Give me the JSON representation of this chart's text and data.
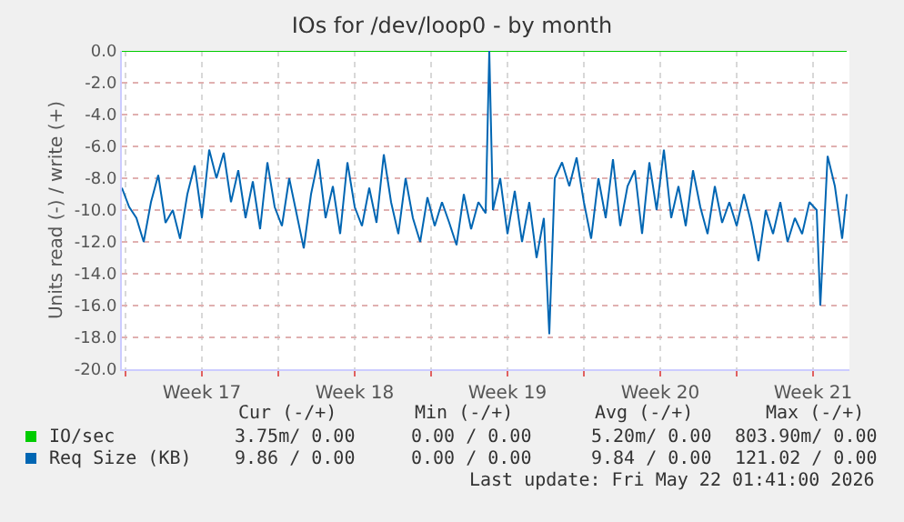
{
  "chart_data": {
    "type": "line",
    "title": "IOs for /dev/loop0 - by month",
    "ylabel": "Units read (-) / write (+)",
    "xlim": [
      "2026-04-18T20:00",
      "2026-05-22T04:00"
    ],
    "ylim": [
      -20,
      0
    ],
    "xticks": [
      {
        "value": "2026-04-19",
        "label": null
      },
      {
        "value": "2026-04-22T12:00",
        "label": "Week 17"
      },
      {
        "value": "2026-04-26",
        "label": null
      },
      {
        "value": "2026-04-29T12:00",
        "label": "Week 18"
      },
      {
        "value": "2026-05-03",
        "label": null
      },
      {
        "value": "2026-05-06T12:00",
        "label": "Week 19"
      },
      {
        "value": "2026-05-10",
        "label": null
      },
      {
        "value": "2026-05-13T12:00",
        "label": "Week 20"
      },
      {
        "value": "2026-05-17",
        "label": null
      },
      {
        "value": "2026-05-20T12:00",
        "label": "Week 21"
      }
    ],
    "yticks": [
      {
        "value": 0,
        "label": "0.0"
      },
      {
        "value": -2,
        "label": "-2.0"
      },
      {
        "value": -4,
        "label": "-4.0"
      },
      {
        "value": -6,
        "label": "-6.0"
      },
      {
        "value": -8,
        "label": "-8.0"
      },
      {
        "value": -10,
        "label": "-10.0"
      },
      {
        "value": -12,
        "label": "-12.0"
      },
      {
        "value": -14,
        "label": "-14.0"
      },
      {
        "value": -16,
        "label": "-16.0"
      },
      {
        "value": -18,
        "label": "-18.0"
      },
      {
        "value": -20,
        "label": "-20.0"
      }
    ],
    "grid": true,
    "legend": "bottom left",
    "marker": "none",
    "line_style": "solid",
    "series": [
      {
        "name": "IO/sec",
        "color": "#00cc00",
        "x": [
          "2026-04-18T20:00",
          "2026-05-22T01:00"
        ],
        "values": [
          0,
          0
        ]
      },
      {
        "name": "Req Size (KB)",
        "color": "#0066b3",
        "x": [
          "2026-04-18T20:00",
          "2026-04-19T04:00",
          "2026-04-19T12:00",
          "2026-04-19T20:00",
          "2026-04-20T04:00",
          "2026-04-20T12:00",
          "2026-04-20T20:00",
          "2026-04-21T04:00",
          "2026-04-21T12:00",
          "2026-04-21T20:00",
          "2026-04-22T04:00",
          "2026-04-22T12:00",
          "2026-04-22T20:00",
          "2026-04-23T04:00",
          "2026-04-23T12:00",
          "2026-04-23T20:00",
          "2026-04-24T04:00",
          "2026-04-24T12:00",
          "2026-04-24T20:00",
          "2026-04-25T04:00",
          "2026-04-25T12:00",
          "2026-04-25T20:00",
          "2026-04-26T04:00",
          "2026-04-26T12:00",
          "2026-04-26T20:00",
          "2026-04-27T04:00",
          "2026-04-27T12:00",
          "2026-04-27T20:00",
          "2026-04-28T04:00",
          "2026-04-28T12:00",
          "2026-04-28T20:00",
          "2026-04-29T04:00",
          "2026-04-29T12:00",
          "2026-04-29T20:00",
          "2026-04-30T04:00",
          "2026-04-30T12:00",
          "2026-04-30T20:00",
          "2026-05-01T04:00",
          "2026-05-01T12:00",
          "2026-05-01T20:00",
          "2026-05-02T04:00",
          "2026-05-02T12:00",
          "2026-05-02T20:00",
          "2026-05-03T04:00",
          "2026-05-03T12:00",
          "2026-05-03T20:00",
          "2026-05-04T04:00",
          "2026-05-04T12:00",
          "2026-05-04T20:00",
          "2026-05-05T04:00",
          "2026-05-05T12:00",
          "2026-05-05T16:00",
          "2026-05-05T20:00",
          "2026-05-06T04:00",
          "2026-05-06T12:00",
          "2026-05-06T20:00",
          "2026-05-07T04:00",
          "2026-05-07T12:00",
          "2026-05-07T20:00",
          "2026-05-08T04:00",
          "2026-05-08T10:00",
          "2026-05-08T16:00",
          "2026-05-09T00:00",
          "2026-05-09T08:00",
          "2026-05-09T16:00",
          "2026-05-10T00:00",
          "2026-05-10T08:00",
          "2026-05-10T16:00",
          "2026-05-11T00:00",
          "2026-05-11T08:00",
          "2026-05-11T16:00",
          "2026-05-12T00:00",
          "2026-05-12T08:00",
          "2026-05-12T16:00",
          "2026-05-13T00:00",
          "2026-05-13T08:00",
          "2026-05-13T16:00",
          "2026-05-14T00:00",
          "2026-05-14T08:00",
          "2026-05-14T16:00",
          "2026-05-15T00:00",
          "2026-05-15T08:00",
          "2026-05-15T16:00",
          "2026-05-16T00:00",
          "2026-05-16T08:00",
          "2026-05-16T16:00",
          "2026-05-17T00:00",
          "2026-05-17T08:00",
          "2026-05-17T16:00",
          "2026-05-18T00:00",
          "2026-05-18T08:00",
          "2026-05-18T16:00",
          "2026-05-19T00:00",
          "2026-05-19T08:00",
          "2026-05-19T16:00",
          "2026-05-20T00:00",
          "2026-05-20T08:00",
          "2026-05-20T16:00",
          "2026-05-20T20:00",
          "2026-05-21T04:00",
          "2026-05-21T12:00",
          "2026-05-21T20:00",
          "2026-05-22T01:00"
        ],
        "values": [
          -8.6,
          -9.8,
          -10.5,
          -12.0,
          -9.5,
          -7.8,
          -10.8,
          -10.0,
          -11.8,
          -9.0,
          -7.2,
          -10.5,
          -6.2,
          -8.0,
          -6.4,
          -9.5,
          -7.5,
          -10.5,
          -8.2,
          -11.2,
          -7.0,
          -9.8,
          -11.0,
          -8.0,
          -10.2,
          -12.4,
          -9.0,
          -6.8,
          -10.5,
          -8.5,
          -11.5,
          -7.0,
          -9.8,
          -11.0,
          -8.6,
          -10.8,
          -6.5,
          -9.5,
          -11.5,
          -8.0,
          -10.5,
          -12.0,
          -9.2,
          -11.0,
          -9.5,
          -10.8,
          -12.2,
          -9.0,
          -11.2,
          -9.5,
          -10.2,
          0.0,
          -10.0,
          -8.0,
          -11.5,
          -8.8,
          -12.0,
          -9.5,
          -13.0,
          -10.5,
          -17.8,
          -8.0,
          -7.0,
          -8.5,
          -6.7,
          -9.5,
          -11.8,
          -8.0,
          -10.5,
          -6.8,
          -11.0,
          -8.5,
          -7.5,
          -11.5,
          -7.0,
          -10.0,
          -6.2,
          -10.5,
          -8.5,
          -11.0,
          -7.5,
          -9.8,
          -11.5,
          -8.5,
          -10.8,
          -9.5,
          -11.0,
          -9.0,
          -10.8,
          -13.2,
          -10.0,
          -11.5,
          -9.5,
          -12.0,
          -10.5,
          -11.5,
          -9.5,
          -10.0,
          -16.0,
          -6.6,
          -8.5,
          -11.8,
          -9.0
        ]
      }
    ],
    "annotations": [
      "Cur (-/+)",
      "Min (-/+)",
      "Avg (-/+)",
      "Max (-/+)",
      "3.75m/ 0.00",
      "0.00 / 0.00",
      "5.20m/ 0.00",
      "803.90m/ 0.00",
      "9.86 / 0.00",
      "0.00 / 0.00",
      "9.84 / 0.00",
      "121.02 / 0.00",
      "Last update: Fri May 22 01:41:00 2026"
    ]
  }
}
